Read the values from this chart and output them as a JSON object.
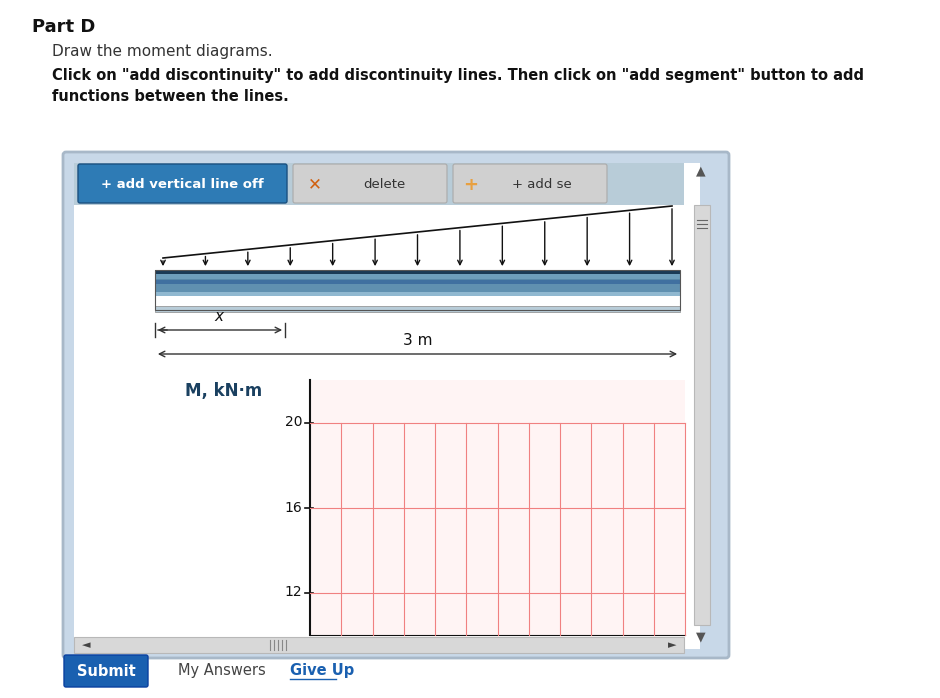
{
  "bg_color": "#ffffff",
  "title_text": "Part D",
  "subtitle1": "Draw the moment diagrams.",
  "subtitle2": "Click on \"add discontinuity\" to add discontinuity lines. Then click on \"add segment\" button to add\nfunctions between the lines.",
  "btn1_text": "+ add vertical line off",
  "btn1_bg": "#2e7bb5",
  "btn1_fg": "#ffffff",
  "btn2_text": "delete",
  "btn2_bg": "#d0d0d0",
  "btn2_fg": "#333333",
  "btn2_x_color": "#d06010",
  "btn3_text": "+ add se",
  "btn3_bg": "#d0d0d0",
  "btn3_fg": "#333333",
  "btn3_plus_color": "#e8a040",
  "panel_border": "#a8b8c8",
  "panel_bg": "#c8d8e8",
  "inner_bg": "#ffffff",
  "toolbar_bg": "#b8ccd8",
  "beam_top_dark": "#2a4a60",
  "beam_main": "#5888a8",
  "beam_light": "#88b0c8",
  "beam_bottom": "#c0d4e0",
  "load_color": "#111111",
  "dim_color": "#333333",
  "ylabel": "M, kN·m",
  "yticks": [
    12,
    16,
    20
  ],
  "grid_color": "#f08080",
  "scrollbar_bg": "#c8c8c8",
  "scrollbar_thumb": "#909090",
  "submit_bg": "#1a60b0",
  "submit_fg": "#ffffff",
  "give_up_color": "#1a60b0",
  "hscroll_grip_color": "#888888"
}
